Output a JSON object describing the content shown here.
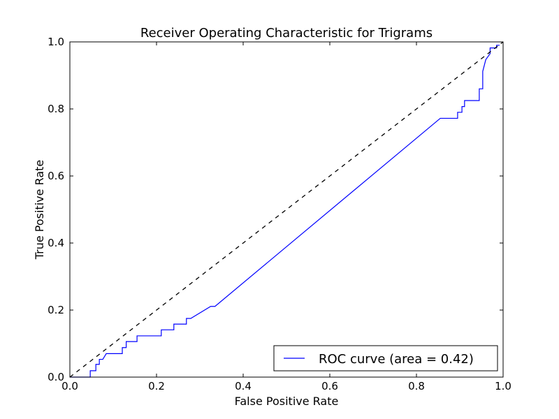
{
  "chart_data": {
    "type": "line",
    "title": "Receiver Operating Characteristic for Trigrams",
    "xlabel": "False Positive Rate",
    "ylabel": "True Positive Rate",
    "xlim": [
      0.0,
      1.0
    ],
    "ylim": [
      0.0,
      1.0
    ],
    "xticks": [
      "0.0",
      "0.2",
      "0.4",
      "0.6",
      "0.8",
      "1.0"
    ],
    "yticks": [
      "0.0",
      "0.2",
      "0.4",
      "0.6",
      "0.8",
      "1.0"
    ],
    "grid": false,
    "legend_position": "lower-right",
    "series": [
      {
        "name": "ROC curve (area = 0.42)",
        "color": "#0000ff",
        "style": "solid",
        "x": [
          0.0,
          0.047,
          0.047,
          0.06,
          0.06,
          0.068,
          0.068,
          0.076,
          0.084,
          0.084,
          0.121,
          0.121,
          0.13,
          0.13,
          0.155,
          0.155,
          0.211,
          0.211,
          0.24,
          0.24,
          0.269,
          0.269,
          0.279,
          0.325,
          0.335,
          0.855,
          0.895,
          0.895,
          0.905,
          0.905,
          0.911,
          0.911,
          0.945,
          0.945,
          0.953,
          0.953,
          0.96,
          0.97,
          0.97,
          0.985,
          0.985,
          0.992
        ],
        "y": [
          0.0,
          0.0,
          0.019,
          0.019,
          0.038,
          0.038,
          0.053,
          0.053,
          0.07,
          0.07,
          0.07,
          0.088,
          0.088,
          0.106,
          0.106,
          0.123,
          0.123,
          0.141,
          0.141,
          0.158,
          0.158,
          0.175,
          0.175,
          0.211,
          0.211,
          0.772,
          0.772,
          0.79,
          0.79,
          0.807,
          0.807,
          0.825,
          0.825,
          0.86,
          0.86,
          0.912,
          0.947,
          0.965,
          0.982,
          0.982,
          0.99,
          0.99
        ]
      },
      {
        "name": "",
        "color": "#000000",
        "style": "dashed",
        "x": [
          0.0,
          1.0
        ],
        "y": [
          0.0,
          1.0
        ]
      }
    ]
  }
}
